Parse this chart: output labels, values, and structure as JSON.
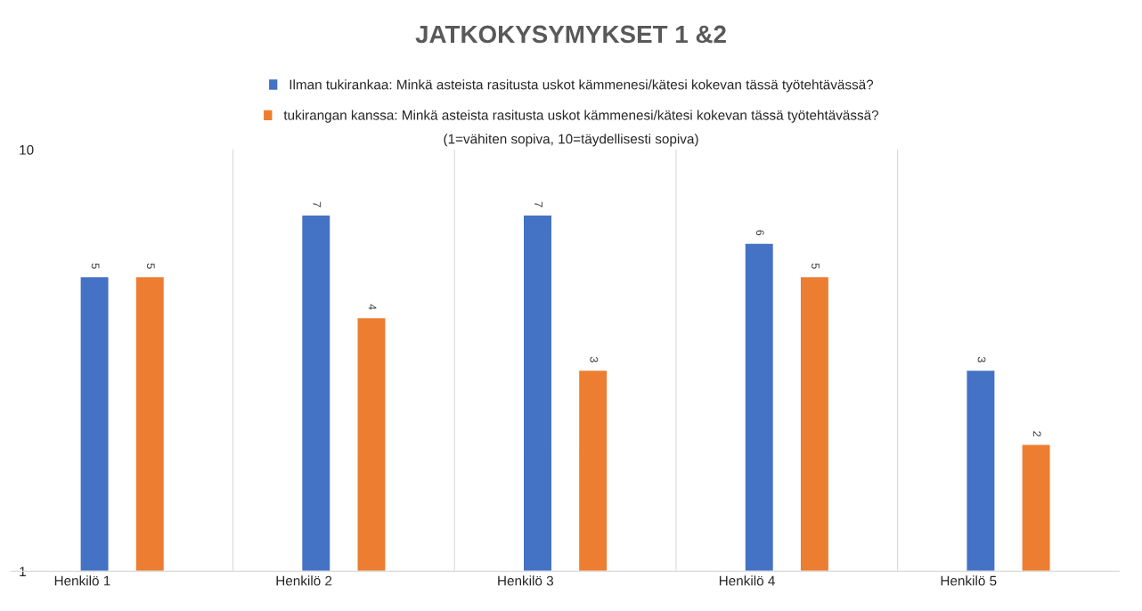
{
  "chart_data": {
    "type": "bar",
    "title": "JATKOKYSYMYKSET 1 &2",
    "subtitle": "(1=vähiten sopiva, 10=täydellisesti sopiva)",
    "categories": [
      "Henkilö 1",
      "Henkilö 2",
      "Henkilö 3",
      "Henkilö 4",
      "Henkilö 5"
    ],
    "series": [
      {
        "name": "Ilman tukirankaa: Minkä asteista rasitusta uskot kämmenesi/kätesi kokevan tässä työtehtävässä?",
        "color": "#4472c4",
        "values": [
          5,
          7,
          7,
          6,
          3
        ]
      },
      {
        "name": "tukirangan kanssa: Minkä asteista rasitusta uskot kämmenesi/kätesi kokevan tässä työtehtävässä?",
        "color": "#ed7d31",
        "values": [
          5,
          4,
          3,
          5,
          2
        ]
      }
    ],
    "log": "y",
    "ylim": [
      1,
      10
    ],
    "yticks": [
      1,
      10
    ],
    "grid": "x",
    "legend": "top",
    "data_labels": true
  }
}
